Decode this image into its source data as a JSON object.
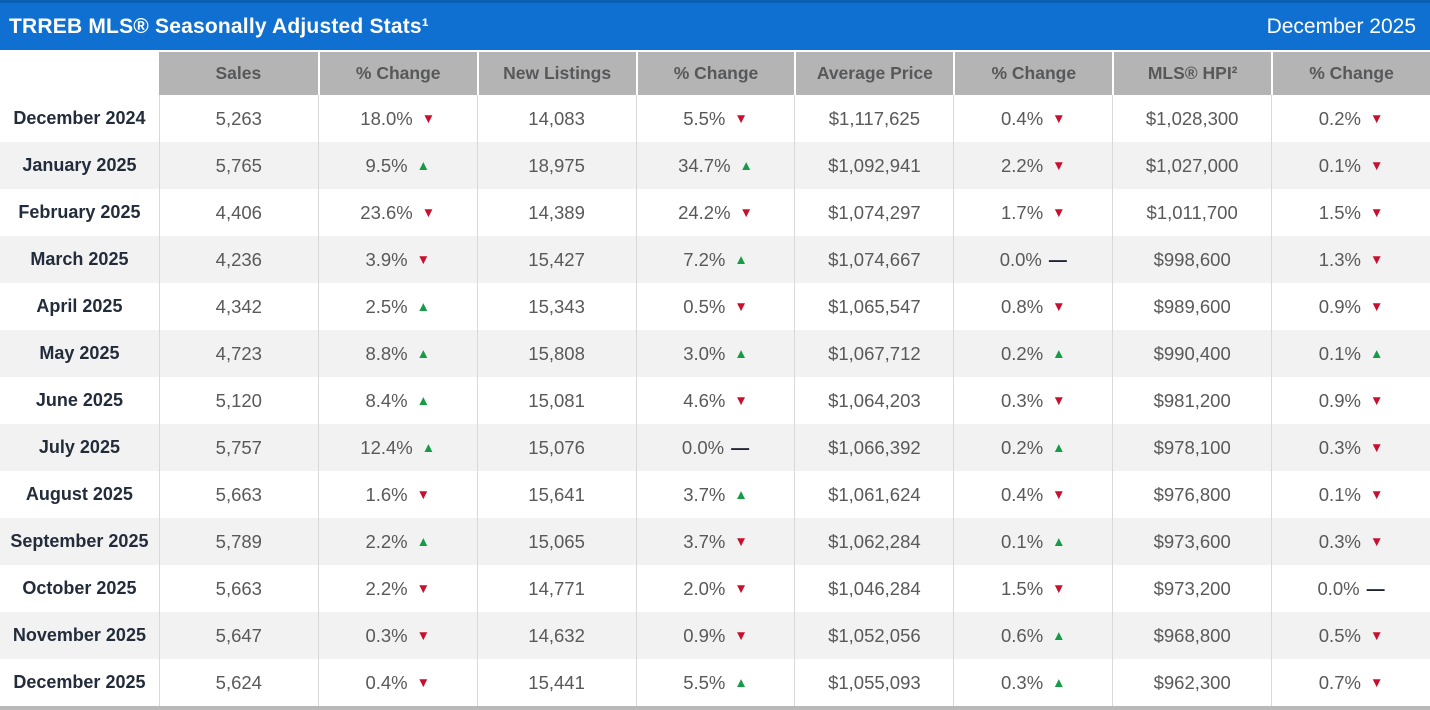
{
  "header": {
    "title": "TRREB MLS® Seasonally Adjusted Stats¹",
    "date": "December 2025"
  },
  "icons": {
    "up": "▲",
    "down": "▼",
    "flat": "—"
  },
  "colors": {
    "title_bar_blue": "#0f70d1",
    "title_bar_blue_dark": "#0a61b6",
    "header_gray": "#b4b4b4",
    "header_text": "#57585a",
    "stripe_gray": "#f2f2f2",
    "cell_text": "#595959",
    "month_text": "#232c3b",
    "grid_line": "#d9d9d9",
    "up_green": "#169c46",
    "down_red": "#c8102e",
    "flat_dash": "#1f2633",
    "bottom_border": "#b9b9b9"
  },
  "chart_data": {
    "type": "table",
    "title": "TRREB MLS® Seasonally Adjusted Stats¹",
    "period": "December 2025",
    "columns": [
      "",
      "Sales",
      "% Change",
      "New Listings",
      "% Change",
      "Average Price",
      "% Change",
      "MLS® HPI²",
      "% Change"
    ],
    "rows": [
      {
        "month": "December 2024",
        "sales": "5,263",
        "sales_change": "18.0%",
        "sales_dir": "down",
        "new_listings": "14,083",
        "new_listings_change": "5.5%",
        "new_listings_dir": "down",
        "avg_price": "$1,117,625",
        "avg_price_change": "0.4%",
        "avg_price_dir": "down",
        "hpi": "$1,028,300",
        "hpi_change": "0.2%",
        "hpi_dir": "down"
      },
      {
        "month": "January 2025",
        "sales": "5,765",
        "sales_change": "9.5%",
        "sales_dir": "up",
        "new_listings": "18,975",
        "new_listings_change": "34.7%",
        "new_listings_dir": "up",
        "avg_price": "$1,092,941",
        "avg_price_change": "2.2%",
        "avg_price_dir": "down",
        "hpi": "$1,027,000",
        "hpi_change": "0.1%",
        "hpi_dir": "down"
      },
      {
        "month": "February 2025",
        "sales": "4,406",
        "sales_change": "23.6%",
        "sales_dir": "down",
        "new_listings": "14,389",
        "new_listings_change": "24.2%",
        "new_listings_dir": "down",
        "avg_price": "$1,074,297",
        "avg_price_change": "1.7%",
        "avg_price_dir": "down",
        "hpi": "$1,011,700",
        "hpi_change": "1.5%",
        "hpi_dir": "down"
      },
      {
        "month": "March 2025",
        "sales": "4,236",
        "sales_change": "3.9%",
        "sales_dir": "down",
        "new_listings": "15,427",
        "new_listings_change": "7.2%",
        "new_listings_dir": "up",
        "avg_price": "$1,074,667",
        "avg_price_change": "0.0%",
        "avg_price_dir": "flat",
        "hpi": "$998,600",
        "hpi_change": "1.3%",
        "hpi_dir": "down"
      },
      {
        "month": "April 2025",
        "sales": "4,342",
        "sales_change": "2.5%",
        "sales_dir": "up",
        "new_listings": "15,343",
        "new_listings_change": "0.5%",
        "new_listings_dir": "down",
        "avg_price": "$1,065,547",
        "avg_price_change": "0.8%",
        "avg_price_dir": "down",
        "hpi": "$989,600",
        "hpi_change": "0.9%",
        "hpi_dir": "down"
      },
      {
        "month": "May 2025",
        "sales": "4,723",
        "sales_change": "8.8%",
        "sales_dir": "up",
        "new_listings": "15,808",
        "new_listings_change": "3.0%",
        "new_listings_dir": "up",
        "avg_price": "$1,067,712",
        "avg_price_change": "0.2%",
        "avg_price_dir": "up",
        "hpi": "$990,400",
        "hpi_change": "0.1%",
        "hpi_dir": "up"
      },
      {
        "month": "June 2025",
        "sales": "5,120",
        "sales_change": "8.4%",
        "sales_dir": "up",
        "new_listings": "15,081",
        "new_listings_change": "4.6%",
        "new_listings_dir": "down",
        "avg_price": "$1,064,203",
        "avg_price_change": "0.3%",
        "avg_price_dir": "down",
        "hpi": "$981,200",
        "hpi_change": "0.9%",
        "hpi_dir": "down"
      },
      {
        "month": "July 2025",
        "sales": "5,757",
        "sales_change": "12.4%",
        "sales_dir": "up",
        "new_listings": "15,076",
        "new_listings_change": "0.0%",
        "new_listings_dir": "flat",
        "avg_price": "$1,066,392",
        "avg_price_change": "0.2%",
        "avg_price_dir": "up",
        "hpi": "$978,100",
        "hpi_change": "0.3%",
        "hpi_dir": "down"
      },
      {
        "month": "August 2025",
        "sales": "5,663",
        "sales_change": "1.6%",
        "sales_dir": "down",
        "new_listings": "15,641",
        "new_listings_change": "3.7%",
        "new_listings_dir": "up",
        "avg_price": "$1,061,624",
        "avg_price_change": "0.4%",
        "avg_price_dir": "down",
        "hpi": "$976,800",
        "hpi_change": "0.1%",
        "hpi_dir": "down"
      },
      {
        "month": "September 2025",
        "sales": "5,789",
        "sales_change": "2.2%",
        "sales_dir": "up",
        "new_listings": "15,065",
        "new_listings_change": "3.7%",
        "new_listings_dir": "down",
        "avg_price": "$1,062,284",
        "avg_price_change": "0.1%",
        "avg_price_dir": "up",
        "hpi": "$973,600",
        "hpi_change": "0.3%",
        "hpi_dir": "down"
      },
      {
        "month": "October 2025",
        "sales": "5,663",
        "sales_change": "2.2%",
        "sales_dir": "down",
        "new_listings": "14,771",
        "new_listings_change": "2.0%",
        "new_listings_dir": "down",
        "avg_price": "$1,046,284",
        "avg_price_change": "1.5%",
        "avg_price_dir": "down",
        "hpi": "$973,200",
        "hpi_change": "0.0%",
        "hpi_dir": "flat"
      },
      {
        "month": "November 2025",
        "sales": "5,647",
        "sales_change": "0.3%",
        "sales_dir": "down",
        "new_listings": "14,632",
        "new_listings_change": "0.9%",
        "new_listings_dir": "down",
        "avg_price": "$1,052,056",
        "avg_price_change": "0.6%",
        "avg_price_dir": "up",
        "hpi": "$968,800",
        "hpi_change": "0.5%",
        "hpi_dir": "down"
      },
      {
        "month": "December 2025",
        "sales": "5,624",
        "sales_change": "0.4%",
        "sales_dir": "down",
        "new_listings": "15,441",
        "new_listings_change": "5.5%",
        "new_listings_dir": "up",
        "avg_price": "$1,055,093",
        "avg_price_change": "0.3%",
        "avg_price_dir": "up",
        "hpi": "$962,300",
        "hpi_change": "0.7%",
        "hpi_dir": "down"
      }
    ]
  }
}
